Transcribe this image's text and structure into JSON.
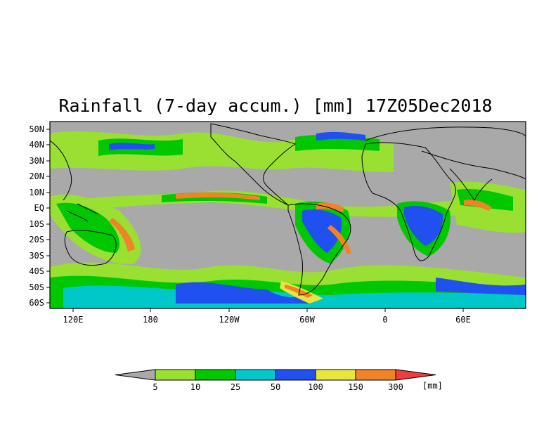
{
  "title": "Rainfall (7-day accum.) [mm] 17Z05Dec2018",
  "map": {
    "lat_labels": [
      "50N",
      "40N",
      "30N",
      "20N",
      "10N",
      "EQ",
      "10S",
      "20S",
      "30S",
      "40S",
      "50S",
      "60S"
    ],
    "lon_labels": [
      "120E",
      "180",
      "120W",
      "60W",
      "0",
      "60E"
    ],
    "background_color": "#a9a9a9",
    "outline_color": "#000000"
  },
  "colorbar": {
    "unit": "[mm]",
    "labels": [
      "5",
      "10",
      "25",
      "50",
      "100",
      "150",
      "300"
    ],
    "colors": [
      "#a9a9a9",
      "#99e033",
      "#00c800",
      "#00c8c8",
      "#2050f0",
      "#e6e63c",
      "#f08228",
      "#f03c3c"
    ]
  }
}
